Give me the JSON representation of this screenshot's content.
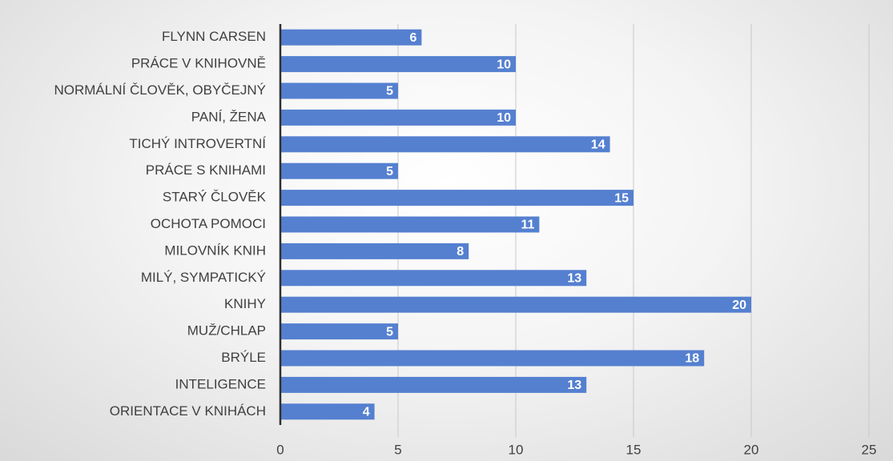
{
  "chart_data": {
    "type": "bar",
    "orientation": "horizontal",
    "categories": [
      "FLYNN CARSEN",
      "PRÁCE V KNIHOVNĚ",
      "NORMÁLNÍ ČLOVĚK, OBYČEJNÝ",
      "PANÍ, ŽENA",
      "TICHÝ INTROVERTNÍ",
      "PRÁCE S KNIHAMI",
      "STARÝ ČLOVĚK",
      "OCHOTA POMOCI",
      "MILOVNÍK KNIH",
      "MILÝ, SYMPATICKÝ",
      "KNIHY",
      "MUŽ/CHLAP",
      "BRÝLE",
      "INTELIGENCE",
      "ORIENTACE V KNIHÁCH"
    ],
    "values": [
      6,
      10,
      5,
      10,
      14,
      5,
      15,
      11,
      8,
      13,
      20,
      5,
      18,
      13,
      4
    ],
    "color": "#5580d0",
    "xlim": [
      0,
      25
    ],
    "xticks": [
      0,
      5,
      10,
      15,
      20,
      25
    ],
    "grid": true
  }
}
